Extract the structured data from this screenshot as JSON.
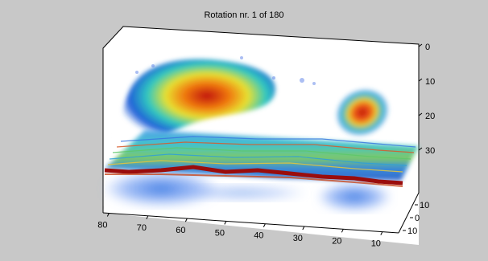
{
  "figure": {
    "background": "#c8c8c8"
  },
  "chart_data": {
    "type": "other",
    "subtype": "3d volume rendering",
    "title": "Rotation nr. 1 of 180",
    "xlabel": "",
    "ylabel": "",
    "zlabel": "",
    "x_ticks": [
      "80",
      "70",
      "60",
      "50",
      "40",
      "30",
      "20",
      "10"
    ],
    "y_ticks": [
      "10",
      "0",
      "10"
    ],
    "z_ticks": [
      "0",
      "10",
      "20",
      "30"
    ],
    "colormap": "jet",
    "grid": false,
    "legend": "none",
    "colors": {
      "axes_face": "#ffffff",
      "figure_bg": "#c8c8c8",
      "low": "#1f5fd6",
      "mid": "#27c4c4",
      "high": "#e6401a",
      "max": "#8a0d0d"
    }
  }
}
